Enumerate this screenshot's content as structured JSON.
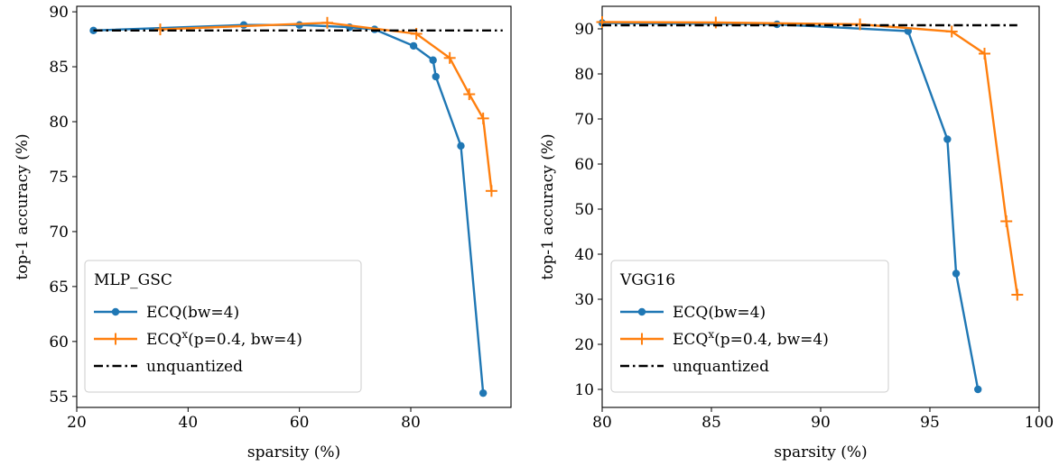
{
  "chart_data": [
    {
      "type": "line",
      "xlabel": "sparsity (%)",
      "ylabel": "top-1 accuracy (%)",
      "xlim": [
        20,
        98
      ],
      "ylim": [
        54,
        90.5
      ],
      "xticks": [
        "20",
        "40",
        "60",
        "80"
      ],
      "xtick_values": [
        20,
        40,
        60,
        80
      ],
      "yticks": [
        "55",
        "60",
        "65",
        "70",
        "75",
        "80",
        "85",
        "90"
      ],
      "ytick_values": [
        55,
        60,
        65,
        70,
        75,
        80,
        85,
        90
      ],
      "legend_title": "MLP_GSC",
      "legend_position": "lower-left",
      "series": [
        {
          "name": "ECQ(bw=4)",
          "color": "#1f77b4",
          "marker": "circle",
          "x": [
            23,
            50,
            60,
            69,
            73.5,
            80.5,
            84,
            84.5,
            89,
            93
          ],
          "y": [
            88.3,
            88.8,
            88.8,
            88.6,
            88.4,
            86.9,
            85.6,
            84.1,
            77.8,
            55.3
          ]
        },
        {
          "name": "ECQ",
          "name_superscript": "x",
          "name_suffix": "(p=0.4, bw=4)",
          "color": "#ff7f0e",
          "marker": "plus",
          "x": [
            35,
            65,
            81,
            87,
            90.5,
            93,
            94.5
          ],
          "y": [
            88.4,
            89.0,
            88.0,
            85.8,
            82.5,
            80.3,
            73.7
          ]
        },
        {
          "name": "unquantized",
          "color": "#000000",
          "style": "dashdot",
          "x": [
            23,
            96.5
          ],
          "y": [
            88.3,
            88.3
          ]
        }
      ]
    },
    {
      "type": "line",
      "xlabel": "sparsity (%)",
      "ylabel": "top-1 accuracy (%)",
      "xlim": [
        80,
        100
      ],
      "ylim": [
        6,
        95
      ],
      "xticks": [
        "80",
        "85",
        "90",
        "95",
        "100"
      ],
      "xtick_values": [
        80,
        85,
        90,
        95,
        100
      ],
      "yticks": [
        "10",
        "20",
        "30",
        "40",
        "50",
        "60",
        "70",
        "80",
        "90"
      ],
      "ytick_values": [
        10,
        20,
        30,
        40,
        50,
        60,
        70,
        80,
        90
      ],
      "legend_title": "VGG16",
      "legend_position": "lower-left",
      "series": [
        {
          "name": "ECQ(bw=4)",
          "color": "#1f77b4",
          "marker": "circle",
          "x": [
            80,
            88,
            94,
            95.8,
            96.2,
            97.2
          ],
          "y": [
            91.3,
            91.0,
            89.5,
            65.5,
            35.7,
            10.0
          ]
        },
        {
          "name": "ECQ",
          "name_superscript": "x",
          "name_suffix": "(p=0.4, bw=4)",
          "color": "#ff7f0e",
          "marker": "plus",
          "x": [
            80,
            85.2,
            91.8,
            96,
            97.5,
            98.5,
            99
          ],
          "y": [
            91.5,
            91.4,
            91.0,
            89.4,
            84.5,
            47.3,
            31.0
          ]
        },
        {
          "name": "unquantized",
          "color": "#000000",
          "style": "dashdot",
          "x": [
            80,
            99
          ],
          "y": [
            90.8,
            90.8
          ]
        }
      ]
    }
  ]
}
